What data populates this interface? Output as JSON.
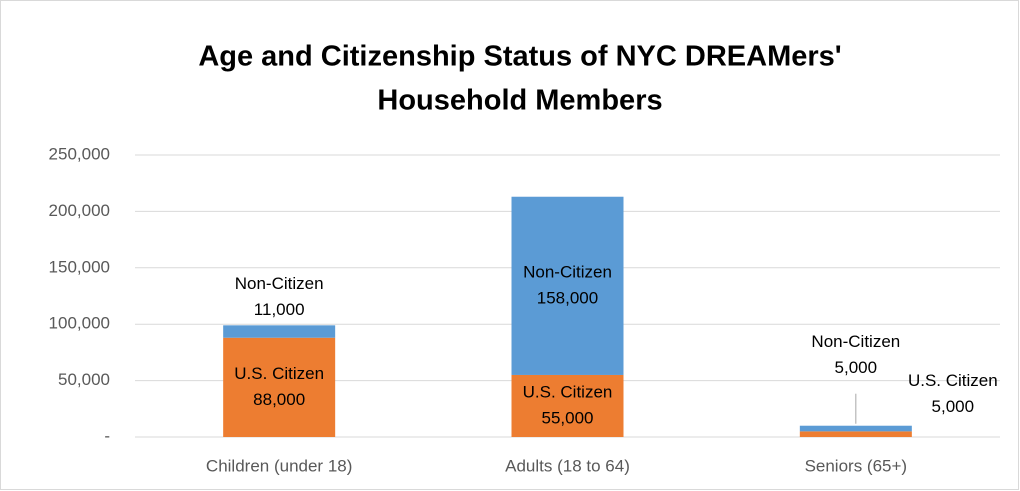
{
  "chart_data": {
    "type": "stacked_bar",
    "title": [
      "Age and Citizenship Status of NYC DREAMers'",
      "Household Members"
    ],
    "categories": [
      "Children (under 18)",
      "Adults (18 to 64)",
      "Seniors (65+)"
    ],
    "series": [
      {
        "name": "U.S. Citizen",
        "color": "#ed7d31",
        "values": [
          88000,
          55000,
          5000
        ],
        "value_labels": [
          "88,000",
          "55,000",
          "5,000"
        ]
      },
      {
        "name": "Non-Citizen",
        "color": "#5b9bd5",
        "values": [
          11000,
          158000,
          5000
        ],
        "value_labels": [
          "11,000",
          "158,000",
          "5,000"
        ]
      }
    ],
    "ylim": [
      0,
      250000
    ],
    "yticks": [
      {
        "value": 0,
        "label": "-"
      },
      {
        "value": 50000,
        "label": "50,000"
      },
      {
        "value": 100000,
        "label": "100,000"
      },
      {
        "value": 150000,
        "label": "150,000"
      },
      {
        "value": 200000,
        "label": "200,000"
      },
      {
        "value": 250000,
        "label": "250,000"
      }
    ],
    "grid": true
  }
}
